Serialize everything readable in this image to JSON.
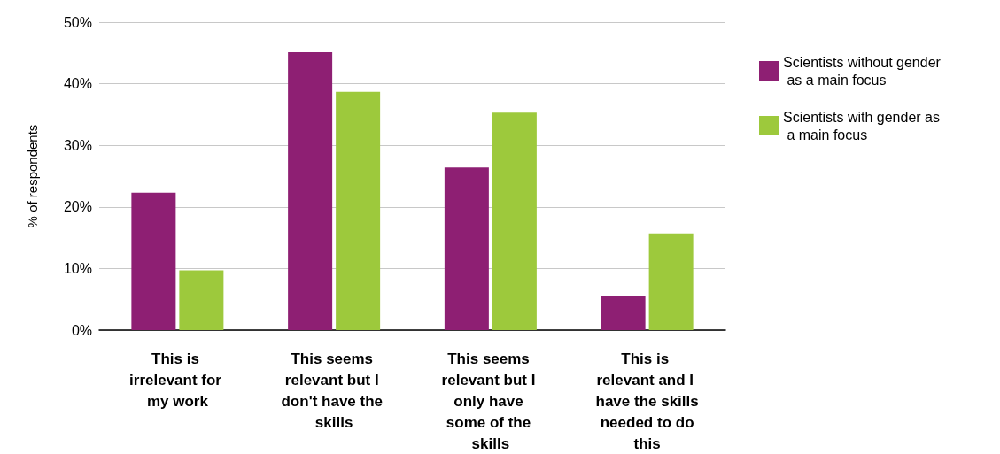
{
  "chart_data": {
    "type": "bar",
    "ylabel": "% of respondents",
    "categories": [
      "This is irrelevant for my work",
      "This seems relevant but I don't have the skills",
      "This seems relevant but I only have some of the skills",
      "This is relevant and I have the skills needed to do this"
    ],
    "series": [
      {
        "name": "Scientists without gender as a main focus",
        "color": "#8e1f73",
        "values": [
          22.3,
          45.1,
          26.4,
          5.6
        ]
      },
      {
        "name": "Scientists with gender as a main focus",
        "color": "#9dc93c",
        "values": [
          9.7,
          38.7,
          35.3,
          15.7
        ]
      }
    ],
    "ylim": [
      0,
      50
    ],
    "yticks": [
      {
        "value": 0,
        "label": "0%"
      },
      {
        "value": 10,
        "label": "10%"
      },
      {
        "value": 20,
        "label": "20%"
      },
      {
        "value": 30,
        "label": "30%"
      },
      {
        "value": 40,
        "label": "40%"
      },
      {
        "value": 50,
        "label": "50%"
      }
    ],
    "grid": "y",
    "legend": "right"
  }
}
